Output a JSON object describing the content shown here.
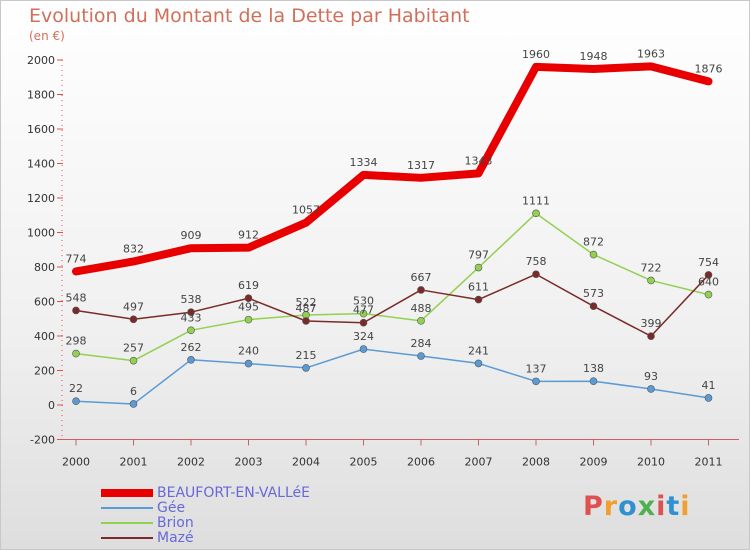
{
  "title": "Evolution du Montant de la Dette par Habitant",
  "subtitle": "(en €)",
  "logo": {
    "text": "Proxiti",
    "colors": [
      "#e05050",
      "#f0a030",
      "#3090d0",
      "#50b050",
      "#e05050",
      "#3090d0",
      "#f0a030"
    ]
  },
  "chart_data": {
    "type": "line",
    "x": [
      "2000",
      "2001",
      "2002",
      "2003",
      "2004",
      "2005",
      "2006",
      "2007",
      "2008",
      "2009",
      "2010",
      "2011"
    ],
    "ylim": [
      -200,
      2000
    ],
    "yticks": [
      -200,
      0,
      200,
      400,
      600,
      800,
      1000,
      1200,
      1400,
      1600,
      1800,
      2000
    ],
    "grid": false,
    "legend": "bottom-left",
    "series": [
      {
        "name": "BEAUFORT-EN-VALLéE",
        "color": "#e80000",
        "width": 8,
        "marker": "none",
        "values": [
          774,
          832,
          909,
          912,
          1057,
          1334,
          1317,
          1343,
          1960,
          1948,
          1963,
          1876
        ],
        "labels": [
          "774",
          "832",
          "909",
          "912",
          "1057",
          "1334",
          "1317",
          "1343",
          "1960",
          "1948",
          "1963",
          "1876"
        ]
      },
      {
        "name": "Gée",
        "color": "#5b9bd5",
        "width": 1.5,
        "marker": "dot",
        "values": [
          22,
          6,
          262,
          240,
          215,
          324,
          284,
          241,
          137,
          138,
          93,
          41
        ],
        "labels": [
          "22",
          "6",
          "262",
          "240",
          "215",
          "324",
          "284",
          "241",
          "137",
          "138",
          "93",
          "41"
        ]
      },
      {
        "name": "Brion",
        "color": "#92d050",
        "width": 1.5,
        "marker": "dot",
        "values": [
          298,
          257,
          433,
          495,
          522,
          530,
          488,
          797,
          1111,
          872,
          722,
          640
        ],
        "labels": [
          "298",
          "257",
          "433",
          "495",
          "522",
          "530",
          "488",
          "797",
          "1111",
          "872",
          "722",
          "640"
        ]
      },
      {
        "name": "Mazé",
        "color": "#7b2a2a",
        "width": 1.5,
        "marker": "dot",
        "values": [
          548,
          497,
          538,
          619,
          487,
          477,
          667,
          611,
          758,
          573,
          399,
          754
        ],
        "labels": [
          "548",
          "497",
          "538",
          "619",
          "487",
          "477",
          "667",
          "611",
          "758",
          "573",
          "399",
          "754"
        ]
      }
    ]
  }
}
